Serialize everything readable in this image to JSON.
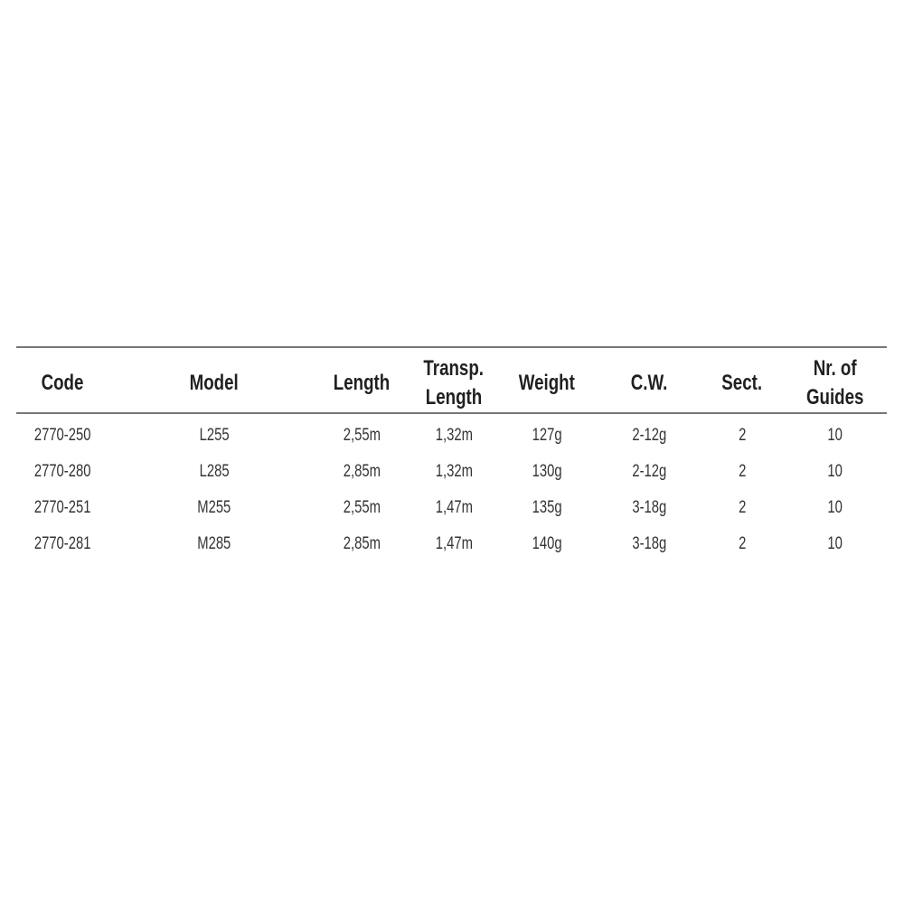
{
  "table": {
    "headers": [
      [
        "Code"
      ],
      [
        "Model"
      ],
      [
        "Length"
      ],
      [
        "Transp.",
        "Length"
      ],
      [
        "Weight"
      ],
      [
        "C.W."
      ],
      [
        "Sect."
      ],
      [
        "Nr. of",
        "Guides"
      ]
    ],
    "rows": [
      [
        "2770-250",
        "L255",
        "2,55m",
        "1,32m",
        "127g",
        "2-12g",
        "2",
        "10"
      ],
      [
        "2770-280",
        "L285",
        "2,85m",
        "1,32m",
        "130g",
        "2-12g",
        "2",
        "10"
      ],
      [
        "2770-251",
        "M255",
        "2,55m",
        "1,47m",
        "135g",
        "3-18g",
        "2",
        "10"
      ],
      [
        "2770-281",
        "M285",
        "2,85m",
        "1,47m",
        "140g",
        "3-18g",
        "2",
        "10"
      ]
    ]
  }
}
